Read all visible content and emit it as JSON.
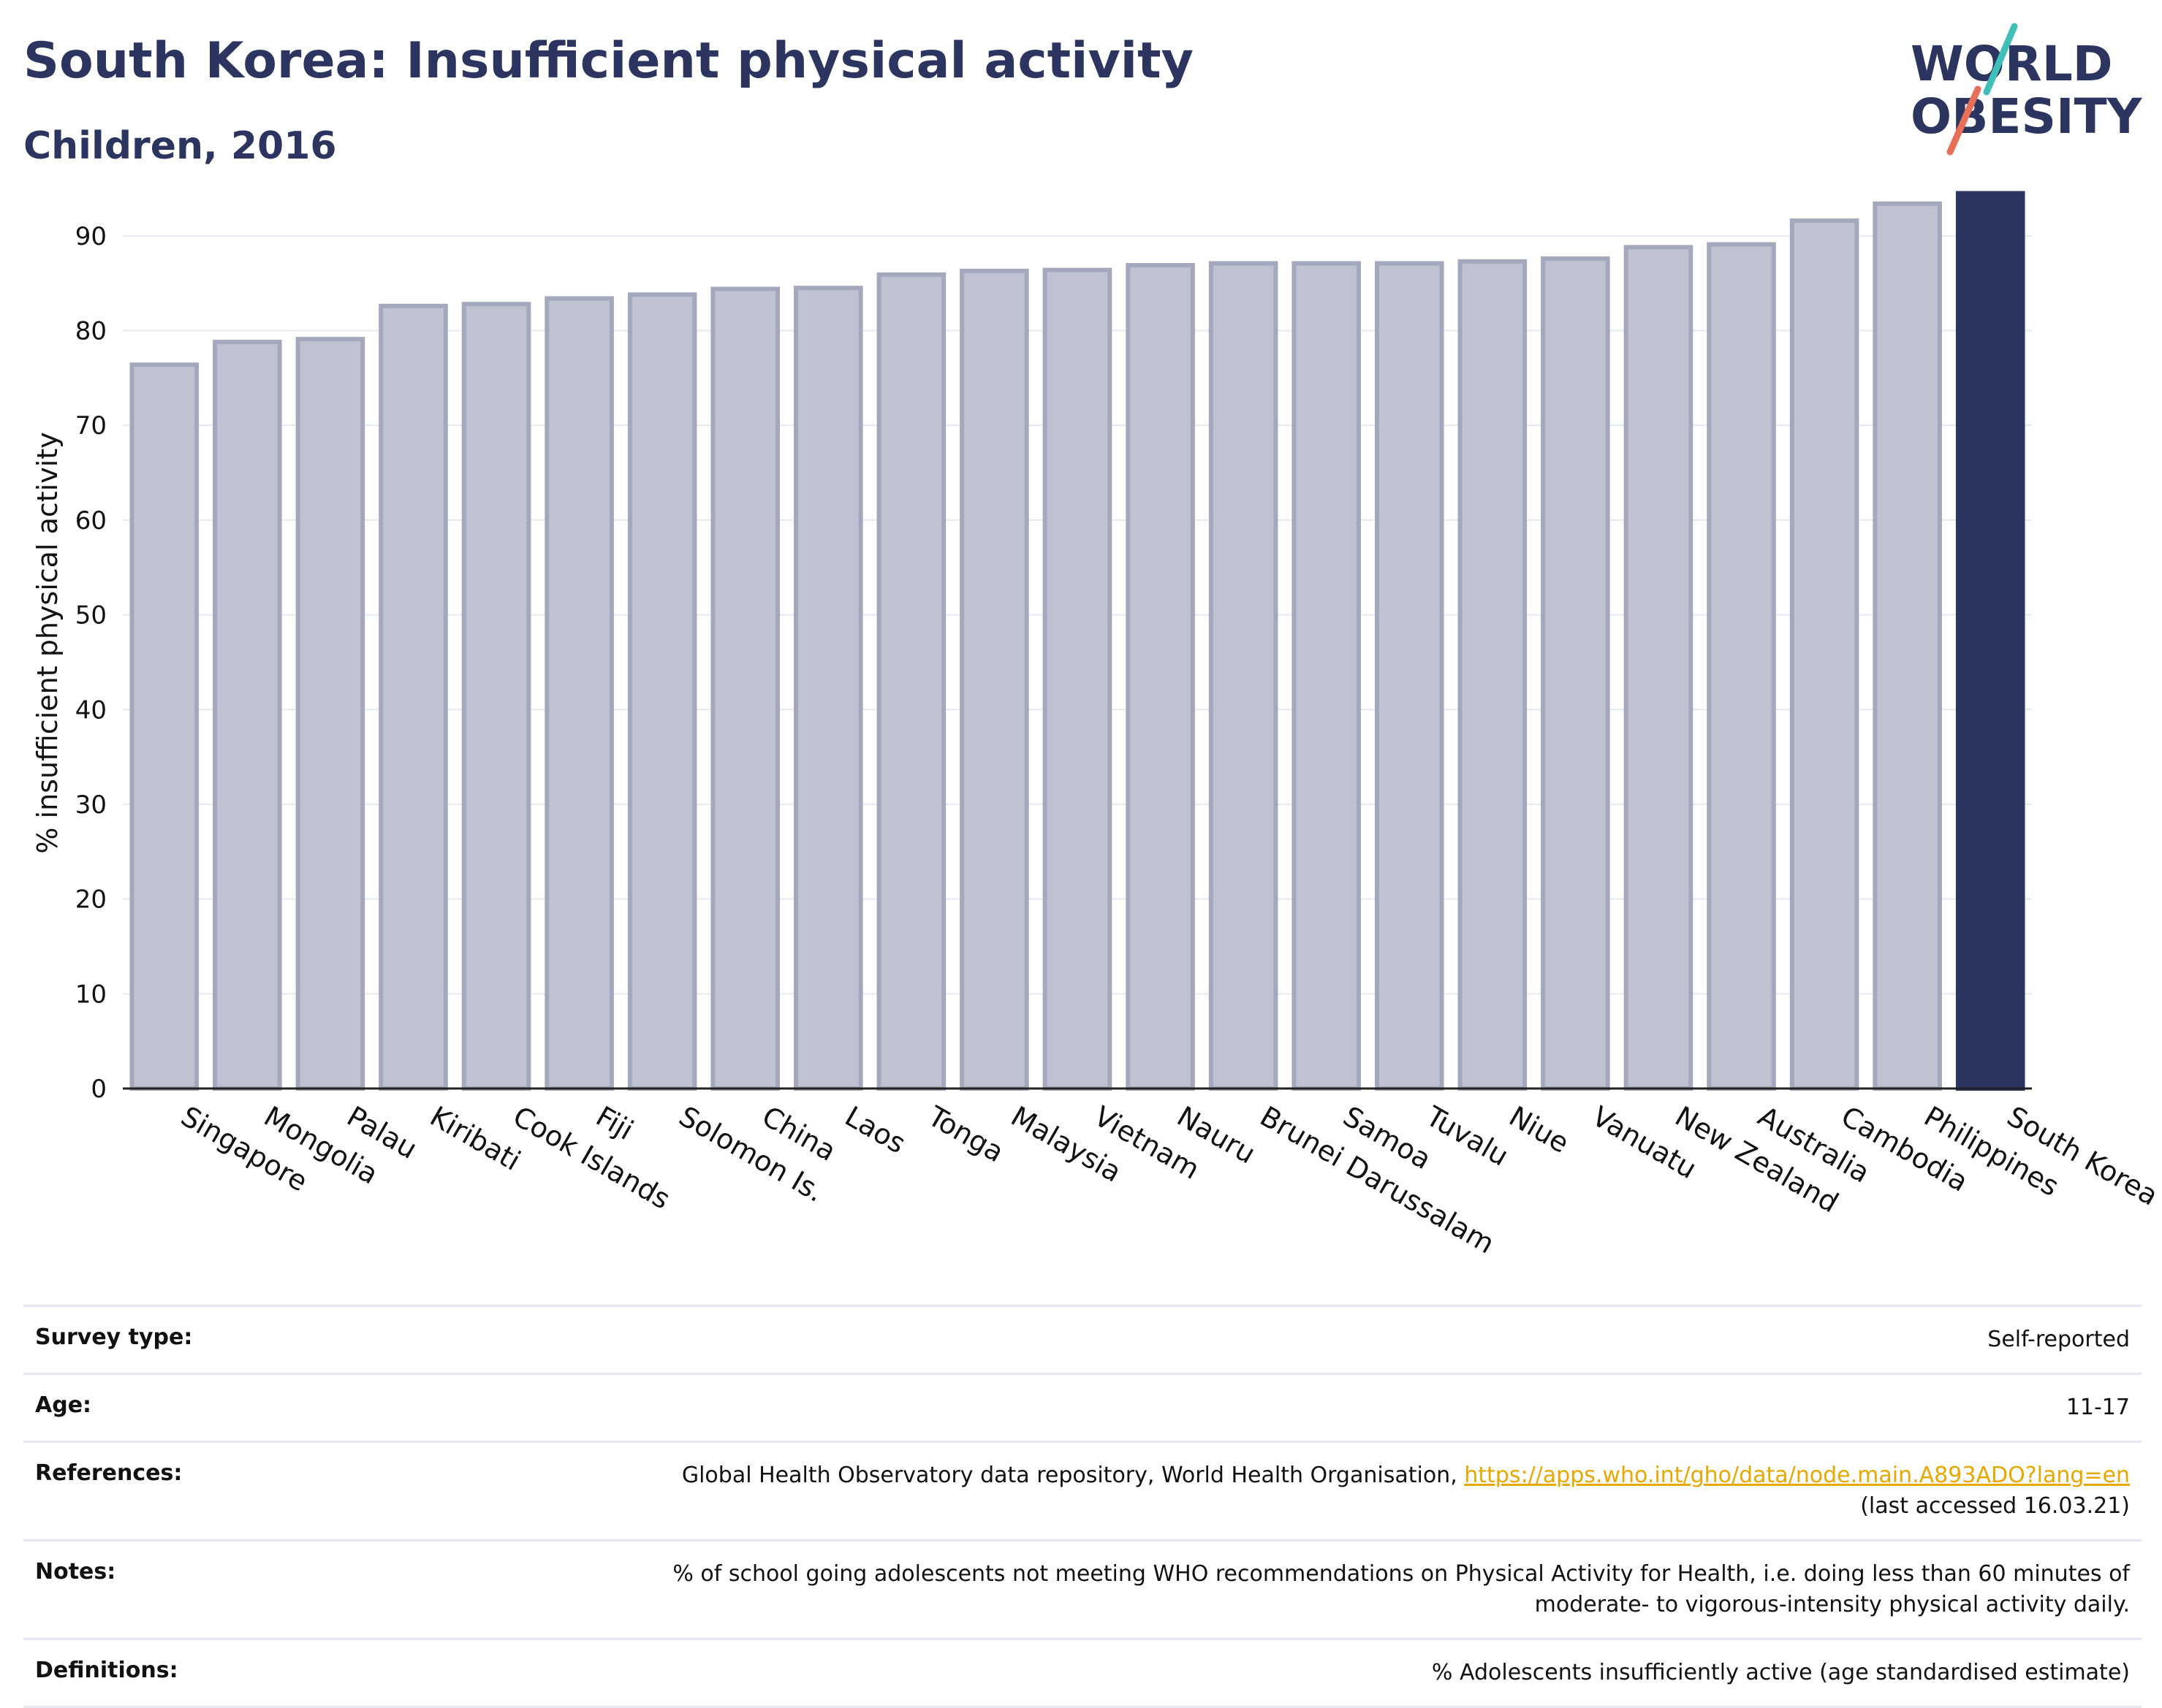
{
  "header": {
    "title": "South Korea: Insufficient physical activity",
    "subtitle": "Children, 2016"
  },
  "logo": {
    "line1": "WORLD",
    "line2": "OBESITY",
    "accent1": "#3fbfb8",
    "accent2": "#e8705a"
  },
  "colors": {
    "bar": "#bfc2d0",
    "bar_border": "#a4a8bd",
    "highlight": "#2b3560",
    "grid": "#e7e9f2"
  },
  "chart_data": {
    "type": "bar",
    "ylabel": "% insufficient physical activity",
    "ylim": [
      0,
      95
    ],
    "yticks": [
      0,
      10,
      20,
      30,
      40,
      50,
      60,
      70,
      80,
      90
    ],
    "grid": true,
    "categories": [
      "Singapore",
      "Mongolia",
      "Palau",
      "Kiribati",
      "Cook Islands",
      "Fiji",
      "Solomon Is.",
      "China",
      "Laos",
      "Tonga",
      "Malaysia",
      "Vietnam",
      "Nauru",
      "Brunei Darussalam",
      "Samoa",
      "Tuvalu",
      "Niue",
      "Vanuatu",
      "New Zealand",
      "Australia",
      "Cambodia",
      "Philippines",
      "South Korea"
    ],
    "values": [
      76.4,
      78.8,
      79.1,
      82.6,
      82.8,
      83.4,
      83.8,
      84.4,
      84.5,
      85.9,
      86.3,
      86.4,
      86.9,
      87.1,
      87.1,
      87.1,
      87.3,
      87.6,
      88.8,
      89.1,
      91.6,
      93.4,
      94.5
    ],
    "highlight": "South Korea"
  },
  "info": [
    {
      "key": "Survey type:",
      "value": "Self-reported"
    },
    {
      "key": "Age:",
      "value": "11-17"
    },
    {
      "key": "References:",
      "value": "Global Health Observatory data repository, World Health Organisation, ",
      "link": "https://apps.who.int/gho/data/node.main.A893ADO?lang=en",
      "value2": "(last accessed 16.03.21)"
    },
    {
      "key": "Notes:",
      "value": "% of school going adolescents not meeting WHO recommendations on Physical Activity for Health, i.e. doing less than 60 minutes of",
      "value2": "moderate- to vigorous-intensity physical activity daily."
    },
    {
      "key": "Definitions:",
      "value": "% Adolescents insufficiently active (age standardised estimate)"
    }
  ]
}
